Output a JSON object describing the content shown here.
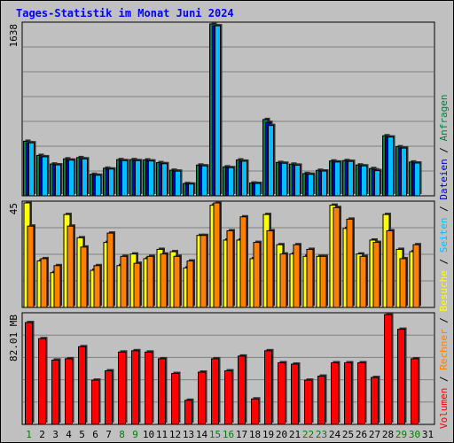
{
  "chart_data": {
    "type": "bar",
    "title": "Tages-Statistik im Monat Juni 2024",
    "categories": [
      "1",
      "2",
      "3",
      "4",
      "5",
      "6",
      "7",
      "8",
      "9",
      "10",
      "11",
      "12",
      "13",
      "14",
      "15",
      "16",
      "17",
      "18",
      "19",
      "20",
      "21",
      "22",
      "23",
      "24",
      "25",
      "26",
      "27",
      "28",
      "29",
      "30",
      "31"
    ],
    "weekend_days": [
      "1",
      "8",
      "9",
      "15",
      "16",
      "22",
      "23",
      "29",
      "30"
    ],
    "colors": {
      "weekday_label": "#000000",
      "weekend_label": "#008000",
      "anfragen": "#008040",
      "dateien": "#0000c0",
      "seiten": "#00c0ff",
      "besuche": "#ffff00",
      "rechner": "#ff8000",
      "volumen": "#ff0000"
    },
    "panels": [
      {
        "id": "hits",
        "ymax_label": "1638",
        "ylim": [
          0,
          1638
        ],
        "series": [
          {
            "name": "Anfragen",
            "values": [
              520,
              385,
              303,
              352,
              364,
              205,
              263,
              345,
              345,
              342,
              316,
              244,
              117,
              293,
              1638,
              276,
              342,
              122,
              727,
              318,
              302,
              212,
              243,
              332,
              336,
              294,
              260,
              572,
              467,
              322,
              0
            ]
          },
          {
            "name": "Dateien",
            "values": [
              505,
              372,
              295,
              340,
              352,
              196,
              255,
              335,
              335,
              332,
              306,
              235,
              112,
              285,
              1620,
              268,
              330,
              118,
              700,
              310,
              292,
              205,
              236,
              322,
              328,
              285,
              248,
              560,
              455,
              312,
              0
            ]
          },
          {
            "name": "Seiten",
            "values": [
              505,
              372,
              295,
              340,
              352,
              196,
              255,
              335,
              335,
              332,
              306,
              235,
              112,
              285,
              1620,
              268,
              330,
              118,
              670,
              310,
              292,
              205,
              236,
              322,
              328,
              285,
              240,
              560,
              455,
              312,
              0
            ]
          }
        ]
      },
      {
        "id": "visits",
        "ymax_label": "45",
        "ylim": [
          0,
          45
        ],
        "series": [
          {
            "name": "Besuche",
            "values": [
              45,
              20,
              15,
              40,
              30,
              16,
              28,
              18,
              23,
              21,
              25,
              24,
              17,
              31,
              44,
              29,
              29,
              21,
              40,
              27,
              23,
              22,
              22,
              44,
              34,
              23,
              29,
              40,
              25,
              24,
              0
            ]
          },
          {
            "name": "Rechner",
            "values": [
              35,
              21,
              18,
              35,
              26,
              18,
              32,
              22,
              19,
              22,
              23,
              22,
              20,
              31,
              45,
              33,
              39,
              28,
              33,
              23,
              27,
              25,
              22,
              43,
              38,
              22,
              28,
              33,
              21,
              27,
              0
            ]
          }
        ]
      },
      {
        "id": "volume",
        "ymax_label": "82.01 MB",
        "ylim": [
          0,
          82.01
        ],
        "series": [
          {
            "name": "Volumen",
            "values": [
              76,
              64,
              48,
              49,
              58,
              33,
              40,
              54,
              55,
              54,
              49,
              38,
              18,
              39,
              49,
              40,
              51,
              19,
              55,
              46,
              45,
              33,
              36,
              46,
              46,
              46,
              35,
              82,
              71,
              49,
              0
            ]
          }
        ]
      }
    ],
    "right_label_parts": [
      {
        "text": "Volumen",
        "color": "#ff0000"
      },
      {
        "text": " / ",
        "color": "#000000"
      },
      {
        "text": "Rechner",
        "color": "#ff8000"
      },
      {
        "text": " / ",
        "color": "#000000"
      },
      {
        "text": "Besuche",
        "color": "#ffff00"
      },
      {
        "text": " / ",
        "color": "#000000"
      },
      {
        "text": "Seiten",
        "color": "#00c0ff"
      },
      {
        "text": " / ",
        "color": "#000000"
      },
      {
        "text": "Dateien",
        "color": "#0000c0"
      },
      {
        "text": " / ",
        "color": "#000000"
      },
      {
        "text": "Anfragen",
        "color": "#008040"
      }
    ]
  }
}
